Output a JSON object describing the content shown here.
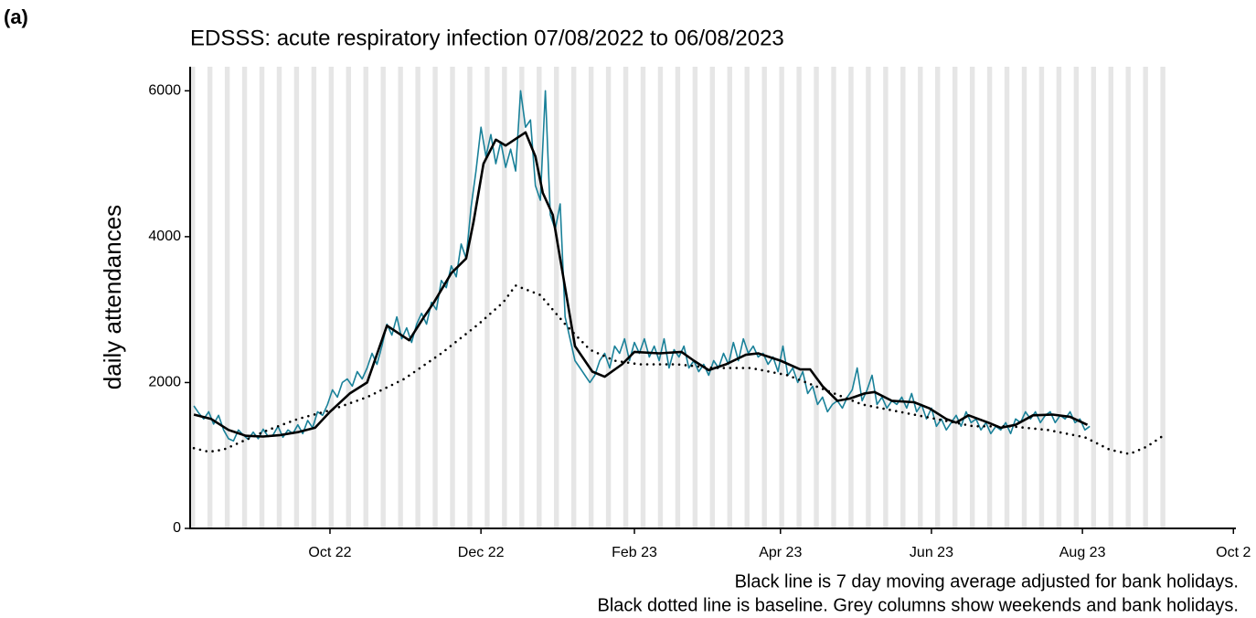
{
  "chart_data": {
    "type": "line",
    "panel_label": "(a)",
    "title": "EDSSS: acute respiratory infection 07/08/2022 to 06/08/2023",
    "ylabel": "daily attendances",
    "annotations": [
      "Black line is 7 day moving average adjusted for bank holidays.",
      "Black dotted line is baseline. Grey columns show weekends and bank holidays."
    ],
    "xlim": [
      -1.5,
      421
    ],
    "xticks": [
      {
        "value": 55,
        "label": "Oct 22"
      },
      {
        "value": 116,
        "label": "Dec 22"
      },
      {
        "value": 178,
        "label": "Feb 23"
      },
      {
        "value": 237,
        "label": "Apr 23"
      },
      {
        "value": 298,
        "label": "Jun 23"
      },
      {
        "value": 359,
        "label": "Aug 23"
      },
      {
        "value": 420,
        "label": "Oct 2"
      }
    ],
    "ylim": [
      0,
      6330
    ],
    "yticks": [
      0,
      2000,
      4000,
      6000
    ],
    "shading_color": "#e6e6e6",
    "series": [
      {
        "color": "#1a8199",
        "style": "solid",
        "width": 1.6,
        "x": [
          0,
          2,
          4,
          6,
          8,
          10,
          12,
          14,
          16,
          18,
          20,
          22,
          24,
          26,
          28,
          30,
          32,
          34,
          36,
          38,
          40,
          42,
          44,
          46,
          48,
          50,
          52,
          54,
          56,
          58,
          60,
          62,
          64,
          66,
          68,
          70,
          72,
          74,
          76,
          78,
          80,
          82,
          84,
          86,
          88,
          90,
          92,
          94,
          96,
          98,
          100,
          102,
          104,
          106,
          108,
          110,
          112,
          114,
          116,
          118,
          120,
          122,
          124,
          126,
          128,
          130,
          132,
          134,
          136,
          138,
          140,
          142,
          144,
          146,
          148,
          150,
          152,
          154,
          156,
          158,
          160,
          162,
          164,
          166,
          168,
          170,
          172,
          174,
          176,
          178,
          180,
          182,
          184,
          186,
          188,
          190,
          192,
          194,
          196,
          198,
          200,
          202,
          204,
          206,
          208,
          210,
          212,
          214,
          216,
          218,
          220,
          222,
          224,
          226,
          228,
          230,
          232,
          234,
          236,
          238,
          240,
          242,
          244,
          246,
          248,
          250,
          252,
          254,
          256,
          258,
          260,
          262,
          264,
          266,
          268,
          270,
          272,
          274,
          276,
          278,
          280,
          282,
          284,
          286,
          288,
          290,
          292,
          294,
          296,
          298,
          300,
          302,
          304,
          306,
          308,
          310,
          312,
          314,
          316,
          318,
          320,
          322,
          324,
          326,
          328,
          330,
          332,
          334,
          336,
          338,
          340,
          342,
          344,
          346,
          348,
          350,
          352,
          354,
          356,
          358,
          360,
          362
        ],
        "values": [
          1680,
          1580,
          1500,
          1600,
          1430,
          1550,
          1350,
          1230,
          1200,
          1350,
          1280,
          1220,
          1320,
          1230,
          1360,
          1260,
          1280,
          1400,
          1250,
          1350,
          1300,
          1420,
          1300,
          1480,
          1380,
          1600,
          1550,
          1700,
          1900,
          1800,
          2000,
          2050,
          1950,
          2150,
          2050,
          2200,
          2400,
          2250,
          2500,
          2800,
          2650,
          2900,
          2600,
          2750,
          2550,
          2800,
          2950,
          2800,
          3100,
          3000,
          3400,
          3300,
          3600,
          3450,
          3900,
          3700,
          4400,
          4900,
          5500,
          5100,
          5400,
          5000,
          5300,
          4950,
          5200,
          4900,
          6000,
          5500,
          5600,
          4700,
          4500,
          6000,
          4300,
          4100,
          4450,
          2900,
          2600,
          2300,
          2200,
          2100,
          2000,
          2100,
          2300,
          2400,
          2200,
          2500,
          2400,
          2600,
          2300,
          2550,
          2400,
          2600,
          2350,
          2500,
          2300,
          2600,
          2200,
          2450,
          2350,
          2500,
          2200,
          2300,
          2150,
          2250,
          2100,
          2300,
          2200,
          2400,
          2250,
          2550,
          2300,
          2600,
          2400,
          2500,
          2350,
          2400,
          2250,
          2350,
          2150,
          2500,
          2100,
          2200,
          2000,
          2150,
          1850,
          1950,
          1700,
          1800,
          1600,
          1700,
          1750,
          1650,
          1800,
          1900,
          2200,
          1750,
          1900,
          2100,
          1700,
          1800,
          1650,
          1750,
          1700,
          1800,
          1650,
          1850,
          1600,
          1700,
          1500,
          1650,
          1400,
          1500,
          1350,
          1450,
          1550,
          1400,
          1600,
          1450,
          1500,
          1350,
          1450,
          1300,
          1400,
          1350,
          1450,
          1300,
          1500,
          1450,
          1600,
          1500,
          1600,
          1450,
          1550,
          1600,
          1450,
          1550,
          1500,
          1600,
          1450,
          1500,
          1350,
          1400
        ]
      },
      {
        "color": "#000000",
        "style": "solid",
        "width": 2.6,
        "x": [
          0,
          7,
          14,
          21,
          28,
          35,
          42,
          49,
          55,
          63,
          70,
          78,
          87,
          93,
          97,
          104,
          110,
          113,
          117,
          122,
          126,
          134,
          138,
          141,
          145,
          150,
          154,
          161,
          166,
          173,
          178,
          188,
          197,
          202,
          208,
          215,
          223,
          228,
          237,
          245,
          249,
          254,
          260,
          265,
          271,
          275,
          282,
          291,
          297,
          304,
          308,
          313,
          321,
          326,
          332,
          339,
          347,
          354,
          361
        ],
        "values": [
          1560,
          1500,
          1350,
          1270,
          1260,
          1280,
          1320,
          1380,
          1600,
          1850,
          2000,
          2780,
          2580,
          2900,
          3100,
          3500,
          3700,
          4200,
          5000,
          5330,
          5250,
          5430,
          5100,
          4600,
          4300,
          3300,
          2500,
          2150,
          2080,
          2250,
          2420,
          2400,
          2420,
          2300,
          2170,
          2250,
          2380,
          2400,
          2300,
          2180,
          2180,
          1950,
          1750,
          1780,
          1850,
          1870,
          1750,
          1730,
          1650,
          1500,
          1450,
          1550,
          1450,
          1380,
          1420,
          1550,
          1560,
          1530,
          1420
        ]
      },
      {
        "color": "#000000",
        "style": "dotted",
        "width": 2.6,
        "x": [
          0,
          6,
          12,
          20,
          30,
          42,
          55,
          70,
          85,
          100,
          115,
          125,
          130,
          140,
          150,
          160,
          170,
          180,
          195,
          210,
          225,
          240,
          255,
          270,
          285,
          300,
          315,
          330,
          345,
          360,
          370,
          378,
          385,
          392
        ],
        "values": [
          1100,
          1050,
          1080,
          1200,
          1350,
          1500,
          1620,
          1800,
          2050,
          2400,
          2800,
          3100,
          3330,
          3200,
          2800,
          2450,
          2300,
          2250,
          2250,
          2200,
          2200,
          2100,
          1900,
          1700,
          1600,
          1500,
          1400,
          1400,
          1350,
          1250,
          1080,
          1020,
          1120,
          1280
        ]
      }
    ]
  }
}
